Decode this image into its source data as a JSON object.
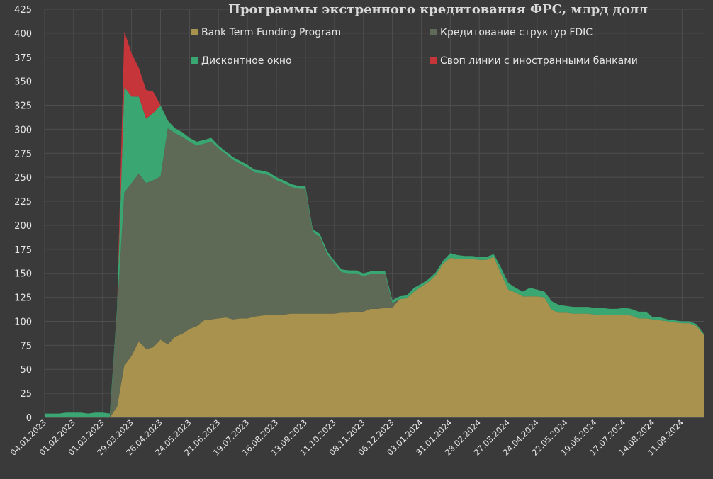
{
  "chart_data": {
    "type": "area",
    "title": "Программы экстренного кредитования ФРС, млрд долл",
    "xlabel": "",
    "ylabel": "",
    "ylim": [
      0,
      425
    ],
    "y_ticks": [
      0,
      25,
      50,
      75,
      100,
      125,
      150,
      175,
      200,
      225,
      250,
      275,
      300,
      325,
      350,
      375,
      400,
      425
    ],
    "x_tick_labels": [
      "04.01.2023",
      "01.02.2023",
      "01.03.2023",
      "29.03.2023",
      "26.04.2023",
      "24.05.2023",
      "21.06.2023",
      "19.07.2023",
      "16.08.2023",
      "13.09.2023",
      "11.10.2023",
      "08.11.2023",
      "06.12.2023",
      "03.01.2024",
      "31.01.2024",
      "28.02.2024",
      "27.03.2024",
      "24.04.2024",
      "22.05.2024",
      "19.06.2024",
      "17.07.2024",
      "14.08.2024",
      "11.09.2024"
    ],
    "grid": true,
    "stacked": true,
    "legend_position": "top",
    "x": [
      "04.01.2023",
      "11.01.2023",
      "18.01.2023",
      "25.01.2023",
      "01.02.2023",
      "08.02.2023",
      "15.02.2023",
      "22.02.2023",
      "01.03.2023",
      "08.03.2023",
      "15.03.2023",
      "22.03.2023",
      "29.03.2023",
      "05.04.2023",
      "12.04.2023",
      "19.04.2023",
      "26.04.2023",
      "03.05.2023",
      "10.05.2023",
      "17.05.2023",
      "24.05.2023",
      "31.05.2023",
      "07.06.2023",
      "14.06.2023",
      "21.06.2023",
      "28.06.2023",
      "05.07.2023",
      "12.07.2023",
      "19.07.2023",
      "26.07.2023",
      "02.08.2023",
      "09.08.2023",
      "16.08.2023",
      "23.08.2023",
      "30.08.2023",
      "06.09.2023",
      "13.09.2023",
      "20.09.2023",
      "27.09.2023",
      "04.10.2023",
      "11.10.2023",
      "18.10.2023",
      "25.10.2023",
      "01.11.2023",
      "08.11.2023",
      "15.11.2023",
      "22.11.2023",
      "29.11.2023",
      "06.12.2023",
      "13.12.2023",
      "20.12.2023",
      "27.12.2023",
      "03.01.2024",
      "10.01.2024",
      "17.01.2024",
      "24.01.2024",
      "31.01.2024",
      "07.02.2024",
      "14.02.2024",
      "21.02.2024",
      "28.02.2024",
      "06.03.2024",
      "13.03.2024",
      "20.03.2024",
      "27.03.2024",
      "03.04.2024",
      "10.04.2024",
      "17.04.2024",
      "24.04.2024",
      "01.05.2024",
      "08.05.2024",
      "15.05.2024",
      "22.05.2024",
      "29.05.2024",
      "05.06.2024",
      "12.06.2024",
      "19.06.2024",
      "26.06.2024",
      "03.07.2024",
      "10.07.2024",
      "17.07.2024",
      "24.07.2024",
      "31.07.2024",
      "07.08.2024",
      "14.08.2024",
      "21.08.2024",
      "28.08.2024",
      "04.09.2024",
      "11.09.2024",
      "18.09.2024",
      "25.09.2024",
      "02.10.2024"
    ],
    "series": [
      {
        "name": "Bank Term Funding Program",
        "color": "#a8924e",
        "values": [
          0,
          0,
          0,
          0,
          0,
          0,
          0,
          0,
          0,
          0,
          11,
          54,
          64,
          79,
          71,
          73,
          81,
          76,
          84,
          87,
          92,
          95,
          101,
          102,
          103,
          104,
          102,
          103,
          103,
          105,
          106,
          107,
          107,
          107,
          108,
          108,
          108,
          108,
          108,
          108,
          108,
          109,
          109,
          110,
          110,
          113,
          113,
          114,
          114,
          123,
          124,
          131,
          136,
          141,
          148,
          160,
          166,
          165,
          165,
          165,
          164,
          164,
          167,
          150,
          133,
          130,
          126,
          126,
          126,
          125,
          112,
          109,
          109,
          108,
          108,
          108,
          107,
          107,
          107,
          107,
          107,
          106,
          103,
          103,
          102,
          101,
          100,
          99,
          98,
          98,
          95,
          86
        ]
      },
      {
        "name": "Кредитование структур FDIC",
        "color": "#606b57",
        "values": [
          0,
          0,
          0,
          0,
          0,
          0,
          0,
          0,
          0,
          0,
          100,
          180,
          180,
          175,
          173,
          174,
          170,
          225,
          212,
          205,
          195,
          188,
          184,
          185,
          177,
          170,
          166,
          161,
          157,
          150,
          148,
          145,
          140,
          137,
          132,
          130,
          130,
          85,
          80,
          62,
          52,
          42,
          41,
          40,
          37,
          36,
          36,
          35,
          5,
          0,
          0,
          0,
          0,
          0,
          0,
          0,
          0,
          0,
          0,
          0,
          0,
          0,
          0,
          0,
          0,
          0,
          0,
          0,
          0,
          0,
          0,
          0,
          0,
          0,
          0,
          0,
          0,
          0,
          0,
          0,
          0,
          0,
          0,
          0,
          0,
          0,
          0,
          0,
          0,
          0,
          0,
          0
        ]
      },
      {
        "name": "Дисконтное окно",
        "color": "#3aa672",
        "values": [
          4,
          4,
          4,
          5,
          5,
          5,
          4,
          5,
          5,
          4,
          4,
          110,
          90,
          80,
          67,
          70,
          74,
          8,
          5,
          5,
          4,
          4,
          4,
          4,
          3,
          3,
          3,
          3,
          3,
          3,
          3,
          3,
          3,
          3,
          3,
          3,
          3,
          3,
          3,
          3,
          3,
          3,
          3,
          3,
          3,
          3,
          3,
          3,
          3,
          3,
          3,
          4,
          3,
          3,
          3,
          3,
          5,
          4,
          3,
          3,
          3,
          3,
          3,
          6,
          7,
          5,
          5,
          9,
          7,
          6,
          9,
          8,
          7,
          7,
          7,
          7,
          7,
          7,
          6,
          6,
          7,
          7,
          7,
          7,
          2,
          3,
          2,
          2,
          2,
          2,
          2,
          1
        ]
      },
      {
        "name": "Своп линии с иностранными банками",
        "color": "#c6353a",
        "values": [
          0,
          0,
          0,
          0,
          0,
          0,
          0,
          0,
          0,
          0,
          0,
          58,
          45,
          30,
          30,
          22,
          0,
          0,
          0,
          0,
          0,
          0,
          0,
          0,
          0,
          0,
          0,
          0,
          0,
          0,
          0,
          0,
          0,
          0,
          0,
          0,
          0,
          0,
          0,
          0,
          0,
          0,
          0,
          0,
          0,
          0,
          0,
          0,
          0,
          0,
          0,
          0,
          0,
          0,
          0,
          0,
          0,
          0,
          0,
          0,
          0,
          0,
          0,
          0,
          0,
          0,
          0,
          0,
          0,
          0,
          0,
          0,
          0,
          0,
          0,
          0,
          0,
          0,
          0,
          0,
          0,
          0,
          0,
          0,
          0,
          0,
          0,
          0,
          0,
          0,
          0,
          0
        ]
      }
    ]
  }
}
